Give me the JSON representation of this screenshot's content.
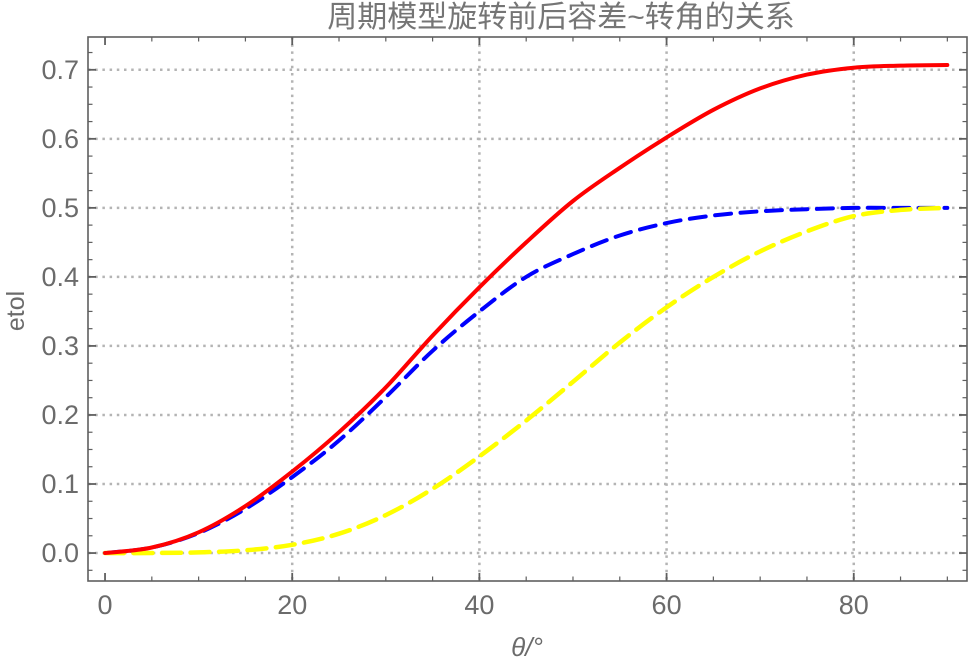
{
  "chart_data": {
    "type": "line",
    "title": "周期模型旋转前后容差~转角的关系",
    "xlabel": "θ/°",
    "ylabel": "etol",
    "xlim": [
      -1.82,
      92.1
    ],
    "ylim": [
      -0.0405,
      0.7475
    ],
    "x_ticks": [
      0,
      20,
      40,
      60,
      80
    ],
    "x_minor_step": 5,
    "x_minor_max": 90,
    "y_ticks": [
      0.0,
      0.1,
      0.2,
      0.3,
      0.4,
      0.5,
      0.6,
      0.7
    ],
    "y_minor_step": 0.025,
    "x_gridlines": [
      20,
      40,
      60,
      80
    ],
    "y_gridlines": [
      0.0,
      0.1,
      0.2,
      0.3,
      0.4,
      0.5,
      0.6,
      0.7
    ],
    "grid_style": "dotted",
    "legend": "none",
    "x": [
      0,
      5,
      10,
      15,
      20,
      25,
      30,
      35,
      40,
      45,
      50,
      55,
      60,
      65,
      70,
      75,
      80,
      85,
      90
    ],
    "series": [
      {
        "name": "blue-dashed",
        "color": "#0000fe",
        "style": "dashed",
        "dash": "16 9.5",
        "width": 4,
        "values": [
          0,
          0.008,
          0.029,
          0.064,
          0.11,
          0.163,
          0.226,
          0.293,
          0.35,
          0.4,
          0.433,
          0.46,
          0.478,
          0.489,
          0.495,
          0.498,
          0.5,
          0.5,
          0.5
        ]
      },
      {
        "name": "yellow-dashed",
        "color": "#ffff00",
        "style": "dashed",
        "dash": "19 9.5",
        "width": 4.5,
        "values": [
          0,
          0.0,
          0.001,
          0.004,
          0.012,
          0.028,
          0.055,
          0.093,
          0.14,
          0.192,
          0.248,
          0.305,
          0.356,
          0.4,
          0.437,
          0.466,
          0.488,
          0.497,
          0.5
        ]
      },
      {
        "name": "red-solid",
        "color": "#fe0000",
        "style": "solid",
        "dash": "",
        "width": 4,
        "values": [
          0,
          0.008,
          0.03,
          0.068,
          0.118,
          0.175,
          0.24,
          0.315,
          0.385,
          0.45,
          0.51,
          0.558,
          0.602,
          0.642,
          0.673,
          0.693,
          0.703,
          0.706,
          0.707
        ]
      }
    ]
  },
  "colors": {
    "frame": "#5f5f5f",
    "grid": "#b4b4b4",
    "tick_labels": "#6b6b6b",
    "title": "#757575",
    "background": "#ffffff"
  }
}
